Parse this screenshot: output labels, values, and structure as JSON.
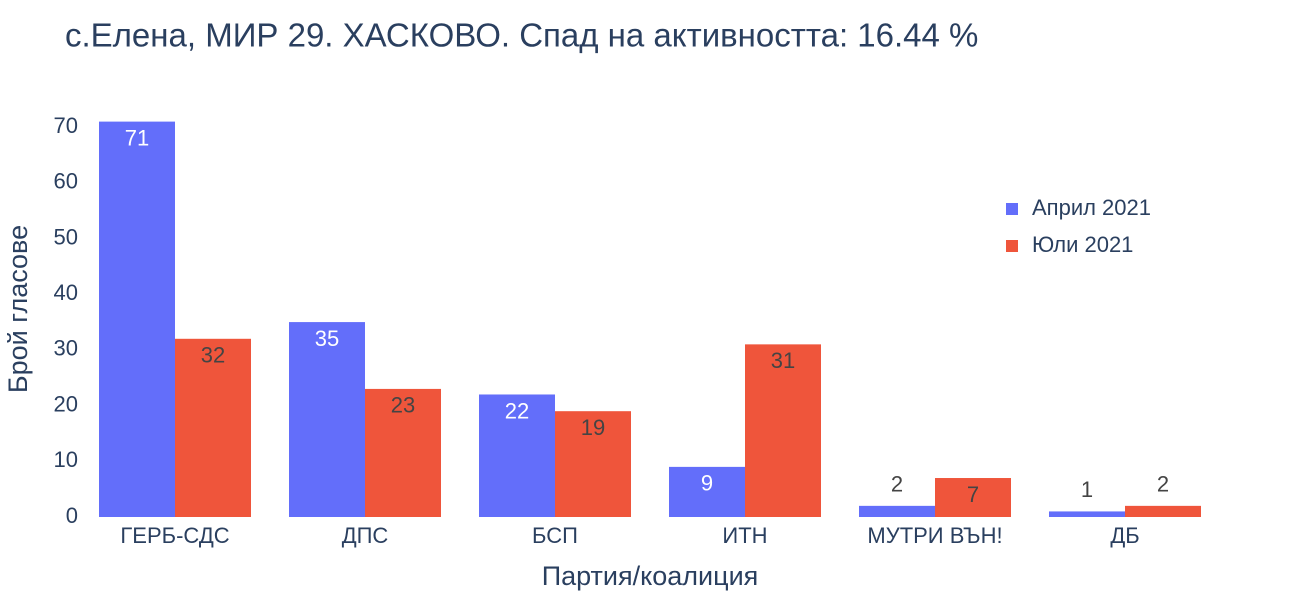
{
  "chart_data": {
    "type": "bar",
    "title": "с.Елена, МИР 29. ХАСКОВО. Спад на активността: 16.44 %",
    "x_label": "Партия/коалиция",
    "y_label": "Брой гласове",
    "categories": [
      "ГЕРБ-СДС",
      "ДПС",
      "БСП",
      "ИТН",
      "МУТРИ ВЪН!",
      "ДБ"
    ],
    "series": [
      {
        "name": "Април 2021",
        "color": "#636efa",
        "values": [
          71,
          35,
          22,
          9,
          2,
          1
        ]
      },
      {
        "name": "Юли 2021",
        "color": "#ef553b",
        "values": [
          32,
          23,
          19,
          31,
          7,
          2
        ]
      }
    ],
    "ylim": [
      0,
      74.7
    ],
    "yticks": [
      0,
      10,
      20,
      30,
      40,
      50,
      60,
      70
    ],
    "legend": "top-right"
  }
}
